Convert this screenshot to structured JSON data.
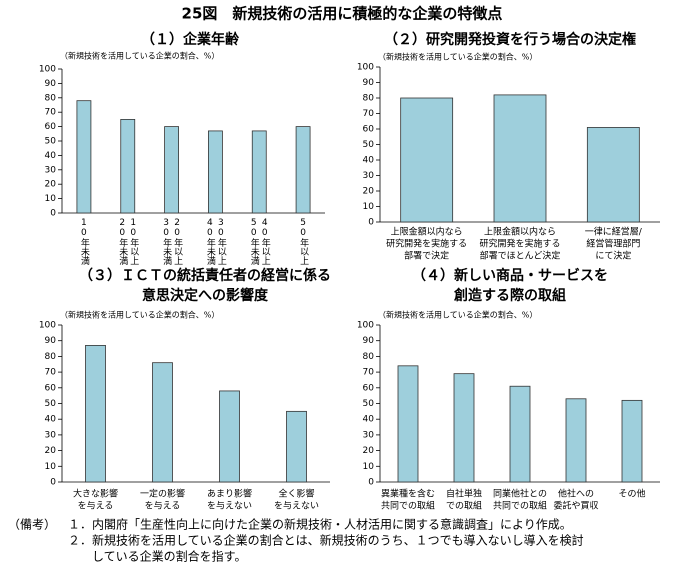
{
  "title": "25図　新規技術の活用に積極的な企業の特徴点",
  "chart_data": [
    {
      "type": "bar",
      "title": [
        "（１）企業年齢"
      ],
      "subtitle": "（新規技術を活用している企業の割合、%）",
      "categories": [
        [
          "10年未満"
        ],
        [
          "20年未満",
          "10年以上"
        ],
        [
          "30年未満",
          "20年以上"
        ],
        [
          "40年未満",
          "30年以上"
        ],
        [
          "50年未満",
          "40年以上"
        ],
        [
          "50年以上"
        ]
      ],
      "values": [
        78,
        65,
        60,
        57,
        57,
        60
      ],
      "color": "#9ecfdc",
      "ylim": [
        0,
        100
      ],
      "yticks": [
        0,
        10,
        20,
        30,
        40,
        50,
        60,
        70,
        80,
        90,
        100
      ]
    },
    {
      "type": "bar",
      "title": [
        "（２）研究開発投資を行う場合の決定権"
      ],
      "subtitle": "（新規技術を活用している企業の割合、%）",
      "categories": [
        [
          "上限金額以内なら",
          "研究開発を実施する",
          "部署で決定"
        ],
        [
          "上限金額以内なら",
          "研究開発を実施する",
          "部署でほとんど決定"
        ],
        [
          "一律に経営層/",
          "経営管理部門",
          "にて決定"
        ]
      ],
      "values": [
        80,
        82,
        61
      ],
      "color": "#9ecfdc",
      "ylim": [
        0,
        100
      ],
      "yticks": [
        0,
        10,
        20,
        30,
        40,
        50,
        60,
        70,
        80,
        90,
        100
      ]
    },
    {
      "type": "bar",
      "title": [
        "（３）ＩＣＴの統括責任者の経営に係る",
        "意思決定への影響度"
      ],
      "subtitle": "（新規技術を活用している企業の割合、%）",
      "categories": [
        [
          "大きな影響",
          "を与える"
        ],
        [
          "一定の影響",
          "を与える"
        ],
        [
          "あまり影響",
          "を与えない"
        ],
        [
          "全く影響",
          "を与えない"
        ]
      ],
      "values": [
        87,
        76,
        58,
        45
      ],
      "color": "#9ecfdc",
      "ylim": [
        0,
        100
      ],
      "yticks": [
        0,
        10,
        20,
        30,
        40,
        50,
        60,
        70,
        80,
        90,
        100
      ]
    },
    {
      "type": "bar",
      "title": [
        "（４）新しい商品・サービスを",
        "創造する際の取組"
      ],
      "subtitle": "（新規技術を活用している企業の割合、%）",
      "categories": [
        [
          "異業種を含む",
          "共同での取組"
        ],
        [
          "自社単独",
          "での取組"
        ],
        [
          "同業他社との",
          "共同での取組"
        ],
        [
          "他社への",
          "委託や買収"
        ],
        [
          "その他"
        ]
      ],
      "values": [
        74,
        69,
        61,
        53,
        52
      ],
      "color": "#9ecfdc",
      "ylim": [
        0,
        100
      ],
      "yticks": [
        0,
        10,
        20,
        30,
        40,
        50,
        60,
        70,
        80,
        90,
        100
      ]
    }
  ],
  "notes": {
    "label": "（備考）",
    "items": [
      "１．内閣府「生産性向上に向けた企業の新規技術・人材活用に関する意識調査」により作成。",
      "２．新規技術を活用している企業の割合とは、新規技術のうち、１つでも導入ないし導入を検討",
      "している企業の割合を指す。"
    ]
  }
}
